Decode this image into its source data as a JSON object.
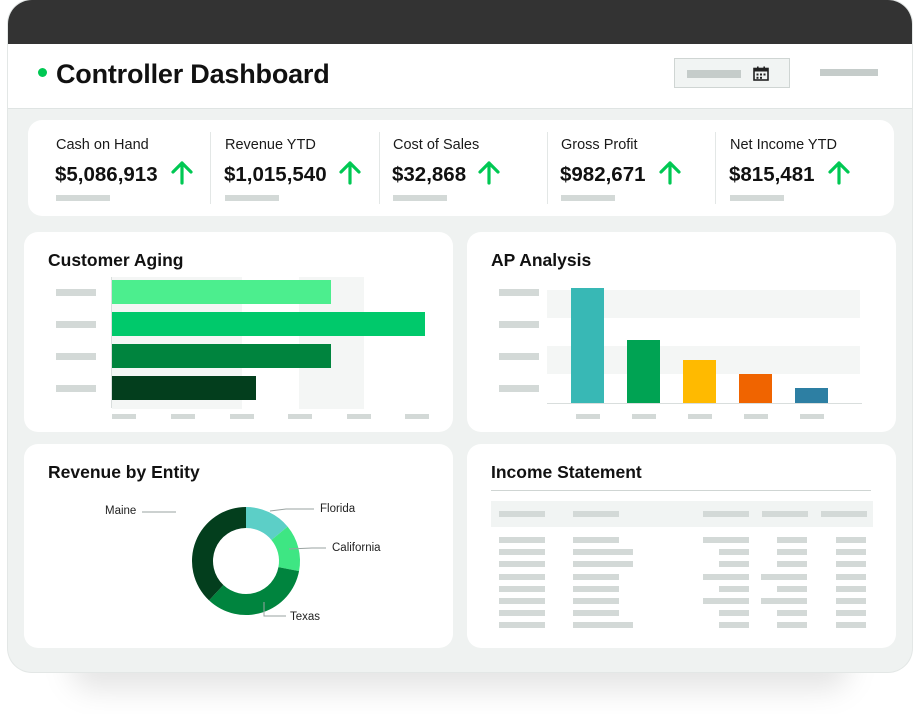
{
  "header": {
    "title": "Controller Dashboard",
    "status_color": "#00c853",
    "date_picker_icon": "calendar-icon"
  },
  "kpis": [
    {
      "label": "Cash on Hand",
      "value": "$5,086,913",
      "trend": "up"
    },
    {
      "label": "Revenue YTD",
      "value": "$1,015,540",
      "trend": "up"
    },
    {
      "label": "Cost of Sales",
      "value": "$32,868",
      "trend": "up"
    },
    {
      "label": "Gross Profit",
      "value": "$982,671",
      "trend": "up"
    },
    {
      "label": "Net Income YTD",
      "value": "$815,481",
      "trend": "up"
    }
  ],
  "trend_color": "#00c853",
  "customer_aging": {
    "title": "Customer Aging",
    "chart_data": {
      "type": "bar",
      "orientation": "horizontal",
      "values": [
        0.7,
        1.0,
        0.7,
        0.46
      ],
      "xlim": [
        0,
        1
      ],
      "colors": [
        "#4cee8e",
        "#00c96b",
        "#00843e",
        "#033e1d"
      ]
    }
  },
  "ap_analysis": {
    "title": "AP Analysis",
    "chart_data": {
      "type": "bar",
      "values": [
        1.0,
        0.55,
        0.37,
        0.25,
        0.13
      ],
      "ylim": [
        0,
        1
      ],
      "colors": [
        "#38b8b5",
        "#00a353",
        "#ffba00",
        "#f06400",
        "#2d7fa3"
      ]
    }
  },
  "revenue_by_entity": {
    "title": "Revenue by Entity",
    "chart_data": {
      "type": "pie",
      "donut": true,
      "labels": [
        "Florida",
        "California",
        "Texas",
        "Maine"
      ],
      "values": [
        14,
        14,
        34,
        38
      ],
      "colors": [
        "#5ccfc7",
        "#3ee683",
        "#00843e",
        "#033e1d"
      ]
    }
  },
  "income_statement": {
    "title": "Income Statement"
  }
}
